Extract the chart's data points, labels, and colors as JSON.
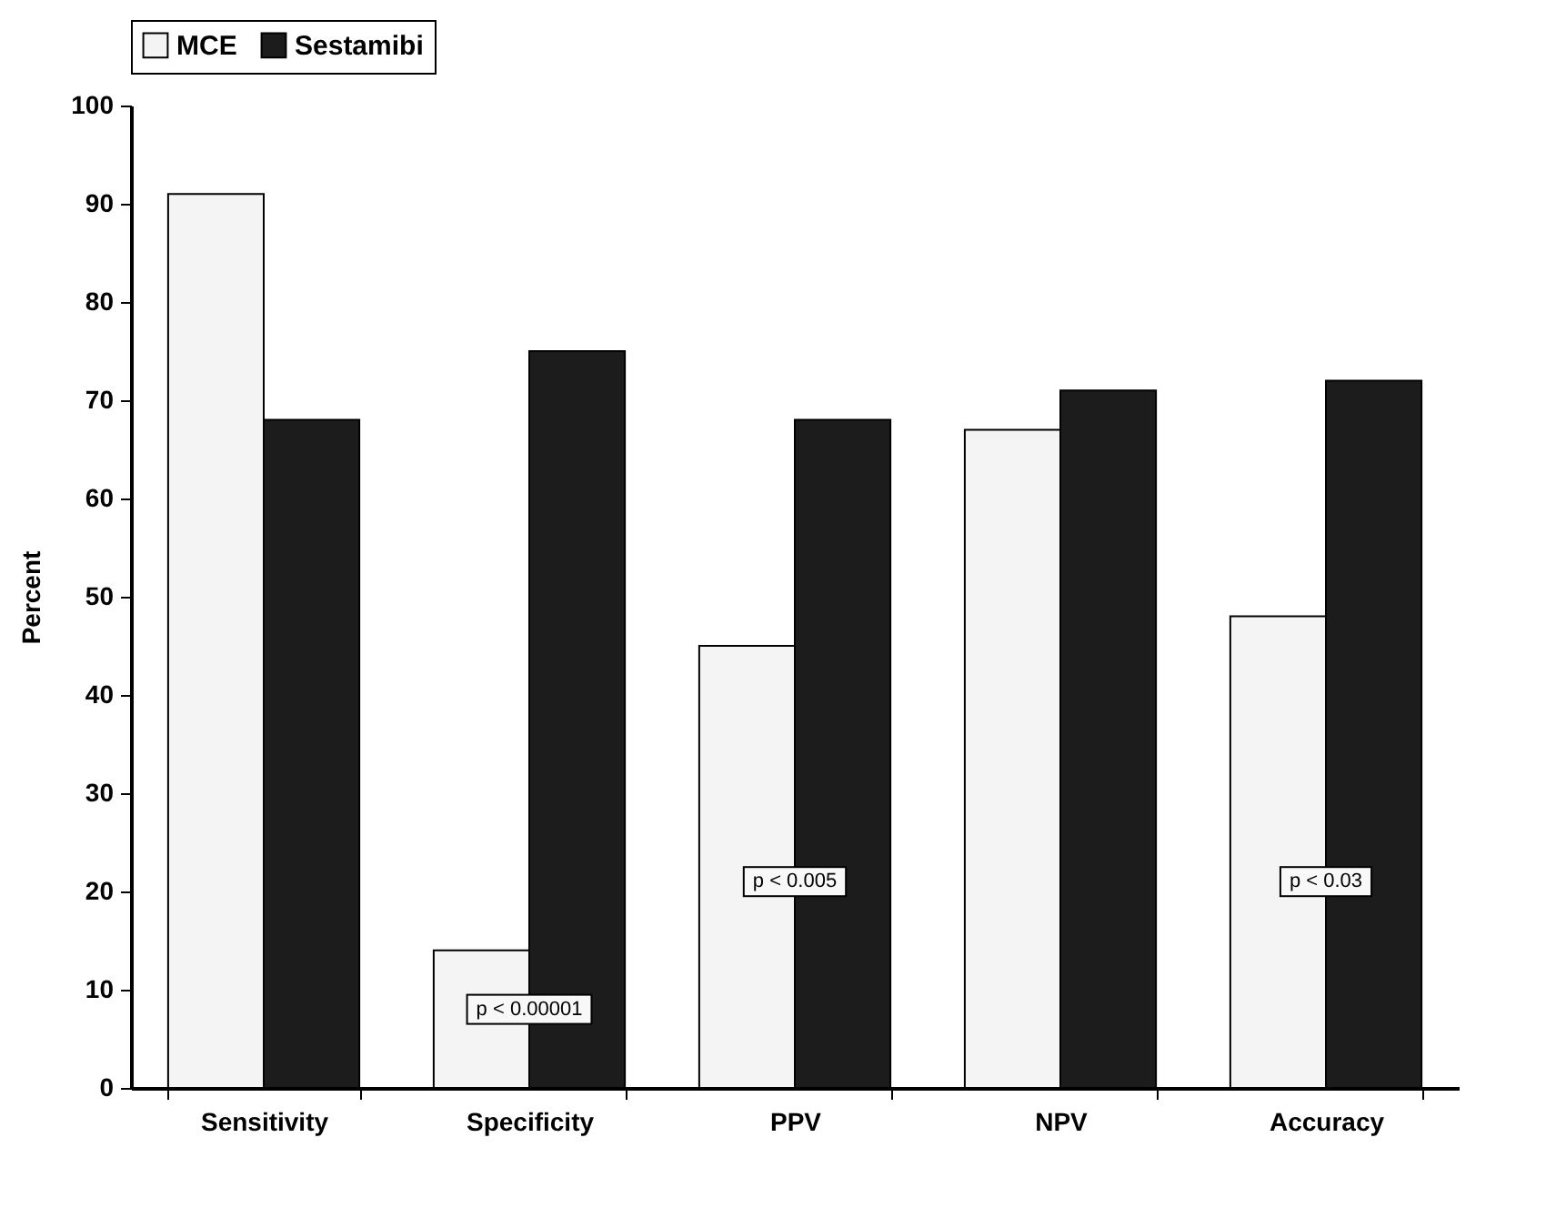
{
  "chart_data": {
    "type": "bar",
    "ylabel": "Percent",
    "categories": [
      "Sensitivity",
      "Specificity",
      "PPV",
      "NPV",
      "Accuracy"
    ],
    "series": [
      {
        "name": "MCE",
        "color": "#f4f4f4",
        "values": [
          91,
          14,
          45,
          67,
          48
        ]
      },
      {
        "name": "Sestamibi",
        "color": "#1c1c1c",
        "values": [
          68,
          75,
          68,
          71,
          72
        ]
      }
    ],
    "ylim": [
      0,
      100
    ],
    "yticks": [
      0,
      10,
      20,
      30,
      40,
      50,
      60,
      70,
      80,
      90,
      100
    ],
    "legend": "top",
    "annotations": [
      {
        "text": "p < 0.00001",
        "x": "Specificity",
        "y": 8
      },
      {
        "text": "p < 0.005",
        "x": "PPV",
        "y": 21
      },
      {
        "text": "p < 0.03",
        "x": "Accuracy",
        "y": 21
      }
    ]
  }
}
